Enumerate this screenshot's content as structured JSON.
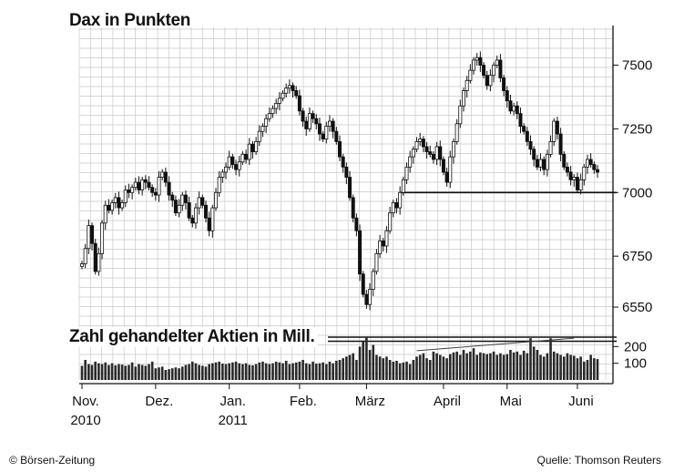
{
  "chart_data": [
    {
      "type": "candlestick",
      "title": "Dax in Punkten",
      "ylim": [
        6450,
        7620
      ],
      "yticks": [
        7500,
        7250,
        7000,
        6750,
        6550
      ],
      "grid": true,
      "reference_line": 7000,
      "x_labels": [
        {
          "label": "Nov.",
          "sublabel": "2010",
          "at": 0
        },
        {
          "label": "Dez.",
          "sublabel": "",
          "at": 22
        },
        {
          "label": "Jan.",
          "sublabel": "2011",
          "at": 44
        },
        {
          "label": "Feb.",
          "sublabel": "",
          "at": 65
        },
        {
          "label": "März",
          "sublabel": "",
          "at": 85
        },
        {
          "label": "April",
          "sublabel": "",
          "at": 108
        },
        {
          "label": "Mai",
          "sublabel": "",
          "at": 127
        },
        {
          "label": "Juni",
          "sublabel": "",
          "at": 148
        }
      ],
      "close": [
        6720,
        6780,
        6870,
        6800,
        6690,
        6760,
        6880,
        6950,
        6930,
        6960,
        6980,
        6940,
        6960,
        7010,
        7000,
        7020,
        7040,
        7010,
        7050,
        7040,
        7020,
        7000,
        6990,
        7060,
        7080,
        7040,
        6990,
        6970,
        6920,
        6950,
        6990,
        6960,
        6900,
        6880,
        6940,
        6980,
        6950,
        6900,
        6850,
        6940,
        7000,
        7060,
        7080,
        7100,
        7140,
        7110,
        7090,
        7120,
        7150,
        7130,
        7190,
        7160,
        7200,
        7240,
        7260,
        7290,
        7310,
        7330,
        7350,
        7370,
        7390,
        7410,
        7420,
        7400,
        7380,
        7320,
        7280,
        7250,
        7310,
        7290,
        7270,
        7230,
        7210,
        7260,
        7280,
        7240,
        7200,
        7140,
        7100,
        7060,
        6980,
        6900,
        6850,
        6680,
        6600,
        6560,
        6620,
        6690,
        6760,
        6810,
        6790,
        6850,
        6920,
        6960,
        6940,
        7000,
        7050,
        7100,
        7140,
        7170,
        7200,
        7210,
        7180,
        7160,
        7150,
        7130,
        7180,
        7130,
        7080,
        7040,
        7140,
        7200,
        7270,
        7340,
        7400,
        7440,
        7480,
        7520,
        7530,
        7500,
        7460,
        7420,
        7460,
        7500,
        7520,
        7450,
        7400,
        7360,
        7320,
        7340,
        7310,
        7260,
        7240,
        7200,
        7170,
        7130,
        7100,
        7130,
        7090,
        7150,
        7200,
        7280,
        7230,
        7150,
        7100,
        7080,
        7050,
        7060,
        7010,
        7050,
        7100,
        7130,
        7110,
        7090,
        7080
      ],
      "volume_title": "Zahl gehandelter Aktien in Mill.",
      "volume_yticks": [
        200,
        100
      ],
      "volume_ylim": [
        0,
        300
      ],
      "volume": [
        85,
        120,
        95,
        90,
        110,
        100,
        95,
        105,
        90,
        100,
        88,
        95,
        92,
        85,
        90,
        105,
        80,
        95,
        90,
        85,
        95,
        110,
        70,
        75,
        80,
        60,
        65,
        70,
        75,
        70,
        80,
        90,
        95,
        110,
        100,
        90,
        85,
        80,
        95,
        100,
        105,
        110,
        98,
        95,
        100,
        105,
        110,
        100,
        95,
        100,
        90,
        88,
        95,
        105,
        110,
        100,
        95,
        100,
        110,
        105,
        100,
        115,
        95,
        100,
        105,
        110,
        120,
        100,
        95,
        110,
        98,
        100,
        105,
        95,
        110,
        100,
        115,
        120,
        130,
        140,
        150,
        160,
        120,
        200,
        230,
        260,
        180,
        210,
        150,
        140,
        130,
        140,
        120,
        110,
        115,
        100,
        105,
        110,
        95,
        120,
        140,
        150,
        160,
        130,
        120,
        170,
        160,
        150,
        140,
        130,
        155,
        165,
        170,
        150,
        180,
        160,
        170,
        190,
        150,
        165,
        160,
        155,
        160,
        170,
        150,
        160,
        150,
        155,
        180,
        165,
        170,
        150,
        175,
        160,
        250,
        200,
        180,
        150,
        140,
        160,
        250,
        170,
        160,
        150,
        140,
        160,
        150,
        145,
        130,
        140,
        110,
        120,
        150,
        130,
        125
      ],
      "volume_trend_values": [
        175,
        250
      ]
    }
  ],
  "footer": {
    "copyright": "© Börsen-Zeitung",
    "source": "Quelle: Thomson Reuters"
  }
}
